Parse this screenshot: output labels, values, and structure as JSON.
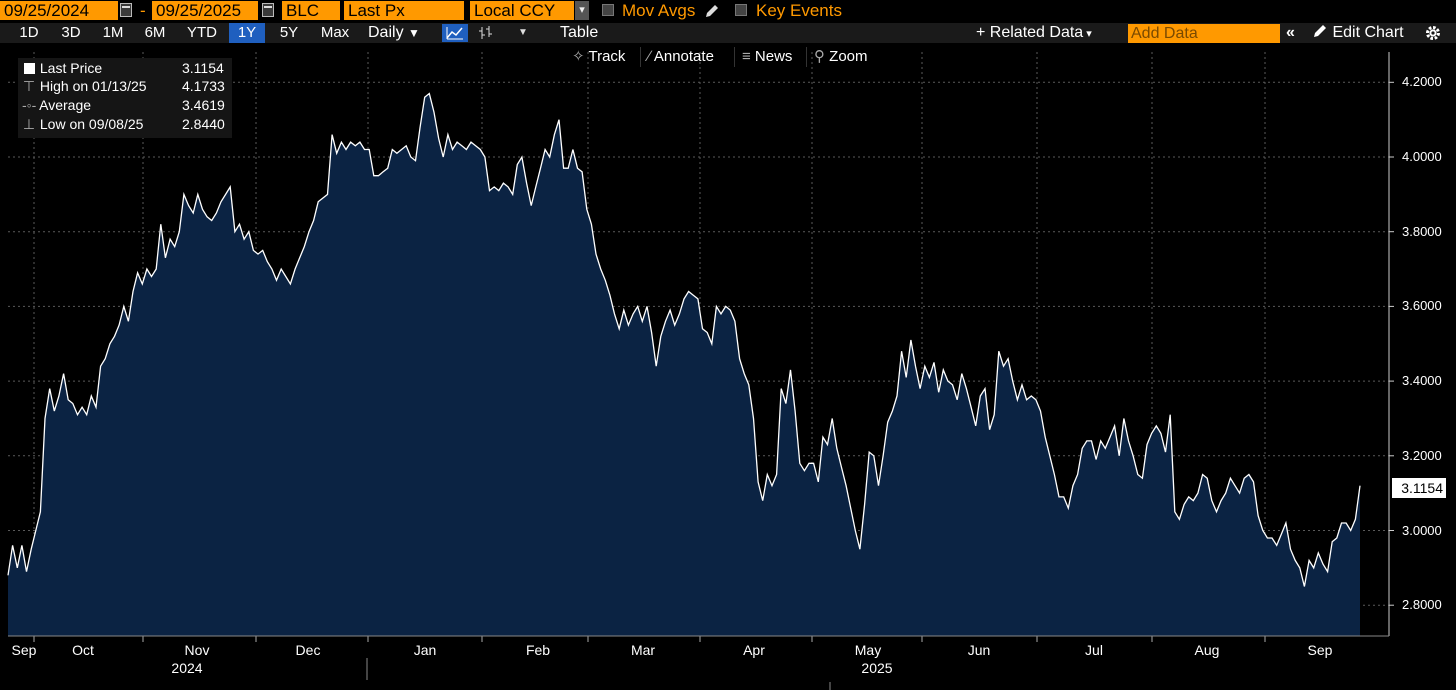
{
  "topbar": {
    "start_date": "09/25/2024",
    "end_date": "09/25/2025",
    "dash": "-",
    "security": "BLC",
    "field": "Last Px",
    "currency": "Local CCY",
    "mov_avgs": "Mov Avgs",
    "key_events": "Key Events"
  },
  "toolbar": {
    "ranges": [
      "1D",
      "3D",
      "1M",
      "6M",
      "YTD",
      "1Y",
      "5Y",
      "Max"
    ],
    "active_range": "1Y",
    "frequency": "Daily",
    "table": "Table",
    "related_data": "Related Data",
    "add_data_placeholder": "Add Data",
    "edit_chart": "Edit Chart"
  },
  "chart_tools": {
    "track": "Track",
    "annotate": "Annotate",
    "news": "News",
    "zoom": "Zoom"
  },
  "legend": {
    "last_price_label": "Last Price",
    "last_price_value": "3.1154",
    "high_label": "High on 01/13/25",
    "high_value": "4.1733",
    "average_label": "Average",
    "average_value": "3.4619",
    "low_label": "Low on 09/08/25",
    "low_value": "2.8440"
  },
  "colors": {
    "accent_orange": "#ff9900",
    "area_fill": "#0b2343",
    "line": "#ffffff",
    "active_range": "#1f5fbf"
  },
  "chart_data": {
    "type": "area",
    "ylim": [
      2.7,
      4.25
    ],
    "yticks": [
      "2.8000",
      "3.0000",
      "3.2000",
      "3.4000",
      "3.6000",
      "3.8000",
      "4.0000",
      "4.2000"
    ],
    "ytick_values": [
      2.8,
      3.0,
      3.2,
      3.4,
      3.6,
      3.8,
      4.0,
      4.2
    ],
    "last_value_tag": "3.1154",
    "x_month_labels": [
      "Sep",
      "Oct",
      "Nov",
      "Dec",
      "Jan",
      "Feb",
      "Mar",
      "Apr",
      "May",
      "Jun",
      "Jul",
      "Aug",
      "Sep"
    ],
    "x_year_labels": [
      "2024",
      "2025"
    ],
    "series": [
      {
        "values": [
          2.88,
          2.96,
          2.9,
          2.96,
          2.89,
          2.95,
          3.0,
          3.05,
          3.3,
          3.38,
          3.32,
          3.36,
          3.42,
          3.35,
          3.34,
          3.31,
          3.33,
          3.31,
          3.36,
          3.33,
          3.44,
          3.46,
          3.5,
          3.52,
          3.55,
          3.6,
          3.56,
          3.64,
          3.69,
          3.66,
          3.7,
          3.68,
          3.7,
          3.82,
          3.73,
          3.78,
          3.76,
          3.8,
          3.9,
          3.87,
          3.85,
          3.9,
          3.86,
          3.84,
          3.83,
          3.85,
          3.88,
          3.9,
          3.92,
          3.8,
          3.82,
          3.78,
          3.8,
          3.75,
          3.74,
          3.75,
          3.72,
          3.7,
          3.67,
          3.7,
          3.68,
          3.66,
          3.7,
          3.73,
          3.76,
          3.8,
          3.83,
          3.88,
          3.89,
          3.9,
          4.06,
          4.01,
          4.04,
          4.02,
          4.04,
          4.03,
          4.04,
          4.02,
          4.02,
          3.95,
          3.95,
          3.96,
          3.97,
          4.02,
          4.01,
          4.02,
          4.03,
          4.0,
          3.99,
          4.08,
          4.16,
          4.17,
          4.12,
          4.05,
          4.0,
          4.06,
          4.02,
          4.04,
          4.03,
          4.02,
          4.04,
          4.03,
          4.02,
          4.0,
          3.91,
          3.92,
          3.91,
          3.93,
          3.92,
          3.9,
          3.98,
          4.0,
          3.93,
          3.87,
          3.92,
          3.97,
          4.02,
          4.0,
          4.06,
          4.1,
          3.97,
          3.97,
          4.02,
          3.97,
          3.96,
          3.86,
          3.82,
          3.74,
          3.7,
          3.67,
          3.63,
          3.58,
          3.54,
          3.59,
          3.55,
          3.58,
          3.6,
          3.56,
          3.6,
          3.53,
          3.44,
          3.52,
          3.56,
          3.59,
          3.55,
          3.58,
          3.62,
          3.64,
          3.63,
          3.62,
          3.54,
          3.53,
          3.5,
          3.6,
          3.58,
          3.6,
          3.59,
          3.56,
          3.46,
          3.42,
          3.39,
          3.3,
          3.13,
          3.08,
          3.15,
          3.12,
          3.15,
          3.38,
          3.34,
          3.43,
          3.32,
          3.18,
          3.16,
          3.18,
          3.18,
          3.13,
          3.25,
          3.23,
          3.3,
          3.22,
          3.17,
          3.12,
          3.06,
          3.0,
          2.95,
          3.07,
          3.21,
          3.2,
          3.12,
          3.2,
          3.29,
          3.32,
          3.36,
          3.48,
          3.41,
          3.51,
          3.44,
          3.38,
          3.44,
          3.41,
          3.45,
          3.37,
          3.43,
          3.4,
          3.39,
          3.35,
          3.42,
          3.38,
          3.33,
          3.28,
          3.36,
          3.38,
          3.27,
          3.31,
          3.48,
          3.44,
          3.46,
          3.4,
          3.35,
          3.39,
          3.35,
          3.36,
          3.35,
          3.32,
          3.25,
          3.2,
          3.15,
          3.09,
          3.09,
          3.06,
          3.12,
          3.15,
          3.22,
          3.24,
          3.24,
          3.19,
          3.24,
          3.22,
          3.25,
          3.28,
          3.2,
          3.3,
          3.24,
          3.2,
          3.15,
          3.14,
          3.23,
          3.26,
          3.28,
          3.26,
          3.21,
          3.31,
          3.05,
          3.03,
          3.07,
          3.09,
          3.08,
          3.1,
          3.15,
          3.14,
          3.08,
          3.05,
          3.08,
          3.1,
          3.14,
          3.12,
          3.1,
          3.14,
          3.15,
          3.13,
          3.04,
          3.0,
          2.98,
          2.98,
          2.96,
          2.99,
          3.02,
          2.95,
          2.92,
          2.9,
          2.85,
          2.92,
          2.9,
          2.94,
          2.91,
          2.89,
          2.97,
          2.98,
          3.02,
          3.02,
          3.0,
          3.03,
          3.12
        ]
      }
    ]
  }
}
